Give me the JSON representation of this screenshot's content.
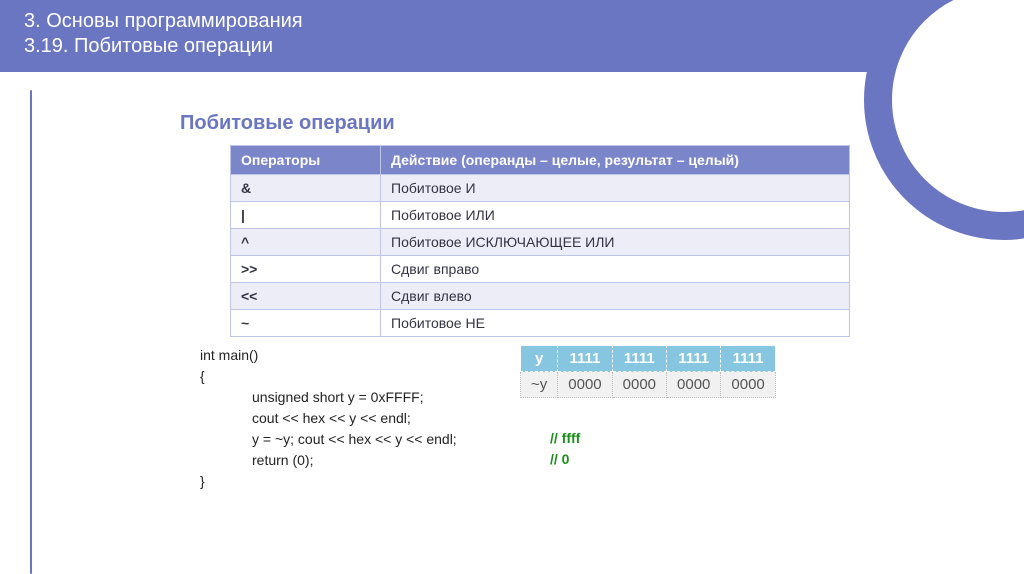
{
  "header": {
    "line1": "3. Основы программирования",
    "line2": "3.19. Побитовые операции"
  },
  "section_title": "Побитовые операции",
  "ops_table": {
    "head_col1": "Операторы",
    "head_col2": "Действие (операнды – целые, результат – целый)",
    "rows": [
      {
        "op": "&",
        "desc": "Побитовое И"
      },
      {
        "op": "|",
        "desc": "Побитовое ИЛИ"
      },
      {
        "op": "^",
        "desc": "Побитовое ИСКЛЮЧАЮЩЕЕ ИЛИ"
      },
      {
        "op": ">>",
        "desc": "Сдвиг вправо"
      },
      {
        "op": "<<",
        "desc": "Сдвиг влево"
      },
      {
        "op": "~",
        "desc": "Побитовое НЕ"
      }
    ],
    "header_bg": "#7b85ca",
    "alt_bg": "#ecedf7",
    "border_color": "#bfc5e6"
  },
  "code": {
    "l1": "int main()",
    "l2": "{",
    "l3": "unsigned short y = 0xFFFF;",
    "l4": "cout << hex << y << endl;",
    "l5": "y = ~y; cout << hex << y << endl;",
    "l6": "return (0);",
    "l7": "}"
  },
  "bits": {
    "head_label": "y",
    "head_cells": [
      "1111",
      "1111",
      "1111",
      "1111"
    ],
    "row2_label": "~y",
    "row2_cells": [
      "0000",
      "0000",
      "0000",
      "0000"
    ],
    "header_bg": "#86c6e0",
    "row_bg": "#f1f1f1"
  },
  "comments": {
    "c1": "//  ffff",
    "c2": "//  0"
  },
  "colors": {
    "brand": "#6a76c2",
    "comment_green": "#1a8f1a"
  }
}
